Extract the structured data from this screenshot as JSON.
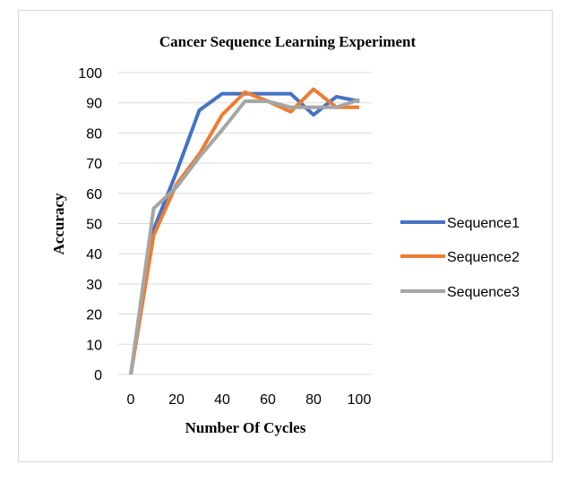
{
  "chart_data": {
    "type": "line",
    "title": "Cancer Sequence Learning Experiment",
    "xlabel": "Number Of Cycles",
    "ylabel": "Accuracy",
    "x": [
      0,
      10,
      20,
      30,
      40,
      50,
      60,
      70,
      80,
      90,
      100
    ],
    "xlim": [
      0,
      100
    ],
    "ylim": [
      0,
      100
    ],
    "xticks": [
      "0",
      "20",
      "40",
      "60",
      "80",
      "100"
    ],
    "yticks": [
      "0",
      "10",
      "20",
      "30",
      "40",
      "50",
      "60",
      "70",
      "80",
      "90",
      "100"
    ],
    "grid": "horizontal",
    "legend_position": "right",
    "series": [
      {
        "name": "Sequence1",
        "color": "#4472c4",
        "values": [
          0,
          48,
          67,
          87.5,
          93,
          93,
          93,
          93,
          86,
          92,
          90.5
        ]
      },
      {
        "name": "Sequence2",
        "color": "#ed7d31",
        "values": [
          0,
          46,
          63,
          73,
          86,
          93.5,
          90.5,
          87,
          94.5,
          88.5,
          88.5
        ]
      },
      {
        "name": "Sequence3",
        "color": "#a5a5a5",
        "values": [
          0,
          55,
          62,
          72,
          81,
          90.5,
          90.5,
          88.5,
          88.5,
          88.5,
          91
        ]
      }
    ]
  }
}
